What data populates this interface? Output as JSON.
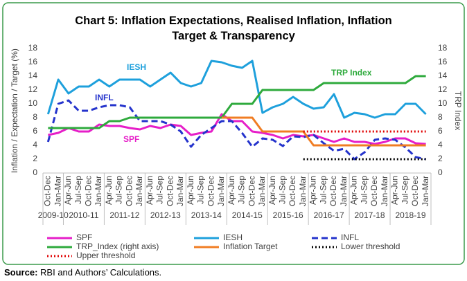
{
  "chart_data": {
    "type": "line",
    "title": "Chart 5: Inflation Expectations, Realised Inflation, Inflation Target & Transparency",
    "y_label": "Inflation / Expectation / Target (%)",
    "y2_label": "TRP Index",
    "categories": [
      "Oct-Dec",
      "Jan-Mar",
      "Apr-Jun",
      "Jul-Sep",
      "Oct-Dec",
      "Jan-Mar",
      "Apr-Jun",
      "Jul-Sep",
      "Oct-Dec",
      "Jan-Mar",
      "Apr-Jun",
      "Jul-Sep",
      "Oct-Dec",
      "Jan-Mar",
      "Apr-Jun",
      "Jul-Sep",
      "Oct-Dec",
      "Jan-Mar",
      "Apr-Jun",
      "Jul-Sep",
      "Oct-Dec",
      "Jan-Mar",
      "Apr-Jun",
      "Jul-Sep",
      "Oct-Dec",
      "Jan-Mar",
      "Apr-Jun",
      "Jul-Sep",
      "Oct-Dec",
      "Jan-Mar",
      "Apr-Jun",
      "Jul-Sep",
      "Oct-Dec",
      "Jan-Mar",
      "Apr-Jun",
      "Jul-Sep",
      "Oct-Dec",
      "Jan-Mar"
    ],
    "category_groups": [
      "2009-10",
      "2009-10",
      "2010-11",
      "2010-11",
      "2010-11",
      "2010-11",
      "2011-12",
      "2011-12",
      "2011-12",
      "2011-12",
      "2012-13",
      "2012-13",
      "2012-13",
      "2012-13",
      "2013-14",
      "2013-14",
      "2013-14",
      "2013-14",
      "2014-15",
      "2014-15",
      "2014-15",
      "2014-15",
      "2015-16",
      "2015-16",
      "2015-16",
      "2015-16",
      "2016-17",
      "2016-17",
      "2016-17",
      "2016-17",
      "2017-18",
      "2017-18",
      "2017-18",
      "2017-18",
      "2018-19",
      "2018-19",
      "2018-19",
      "2018-19"
    ],
    "ylim": [
      0,
      18
    ],
    "yticks": [
      0,
      2,
      4,
      6,
      8,
      10,
      12,
      14,
      16,
      18
    ],
    "y2lim": [
      0,
      18
    ],
    "y2ticks": [
      0,
      2,
      4,
      6,
      8,
      10,
      12,
      14,
      16,
      18
    ],
    "grid": false,
    "series": [
      {
        "name": "SPF",
        "color": "#e61ec8",
        "style": "solid",
        "values": [
          5.5,
          5.8,
          6.5,
          6,
          6,
          7,
          6.8,
          6.8,
          6.5,
          6.3,
          6.8,
          6.5,
          7,
          6.8,
          5.5,
          5.8,
          6,
          8.5,
          7.5,
          7.5,
          6,
          5.8,
          5.5,
          5,
          5.5,
          5.3,
          5.5,
          5,
          4.5,
          5,
          4.5,
          4.5,
          4.2,
          4.5,
          5,
          5,
          4.3,
          4.2
        ]
      },
      {
        "name": "IESH",
        "color": "#1ea0dc",
        "style": "solid",
        "values": [
          8.5,
          13.5,
          11.5,
          12.5,
          12.5,
          13.5,
          12.5,
          13.5,
          13.5,
          13.5,
          12.5,
          13.5,
          14.5,
          13,
          12.5,
          13,
          16.2,
          16,
          15.5,
          15.2,
          16.2,
          8.7,
          9.5,
          10,
          11,
          10,
          9.3,
          9.5,
          11.4,
          8,
          8.7,
          8.5,
          8,
          8.5,
          8.5,
          10,
          10,
          8.5
        ]
      },
      {
        "name": "INFL",
        "color": "#2433cc",
        "style": "dashed",
        "values": [
          4.5,
          10,
          10.5,
          9,
          9,
          9.5,
          9.8,
          9.8,
          9.5,
          7.5,
          7.5,
          7.5,
          7,
          6,
          3.8,
          5.5,
          6.5,
          7.5,
          7.5,
          5.8,
          3.8,
          5,
          4.8,
          3.9,
          5.3,
          5.2,
          5.5,
          4.3,
          3.2,
          3.5,
          2,
          3,
          4.8,
          5,
          4.8,
          3.7,
          2.3,
          2
        ]
      },
      {
        "name": "TRP_Index (right axis)",
        "color": "#2eaa3c",
        "style": "solid",
        "axis": "y2",
        "values": [
          6.5,
          6.5,
          6.5,
          6.5,
          6.5,
          6.5,
          7.5,
          7.5,
          8,
          8,
          8,
          8,
          8,
          8,
          8,
          8,
          8,
          8,
          10,
          10,
          10,
          12,
          12,
          12,
          12,
          12,
          12,
          13,
          13,
          13,
          13,
          13,
          13,
          13,
          13,
          13,
          14,
          14
        ]
      },
      {
        "name": "Inflation Target",
        "color": "#f07d23",
        "style": "solid",
        "values": [
          null,
          null,
          null,
          null,
          null,
          null,
          null,
          null,
          null,
          null,
          null,
          null,
          null,
          null,
          null,
          null,
          null,
          8,
          8,
          8,
          8,
          6,
          6,
          6,
          6,
          6,
          4,
          4,
          4,
          4,
          4,
          4,
          4,
          4,
          4,
          4,
          4,
          4
        ]
      },
      {
        "name": "Lower threshold",
        "color": "#000000",
        "style": "dotted",
        "values": [
          null,
          null,
          null,
          null,
          null,
          null,
          null,
          null,
          null,
          null,
          null,
          null,
          null,
          null,
          null,
          null,
          null,
          null,
          null,
          null,
          null,
          null,
          null,
          null,
          null,
          2,
          2,
          2,
          2,
          2,
          2,
          2,
          2,
          2,
          2,
          2,
          2,
          2
        ]
      },
      {
        "name": "Upper threshold",
        "color": "#e00000",
        "style": "dotted",
        "values": [
          null,
          null,
          null,
          null,
          null,
          null,
          null,
          null,
          null,
          null,
          null,
          null,
          null,
          null,
          null,
          null,
          null,
          null,
          null,
          null,
          null,
          null,
          null,
          null,
          null,
          6,
          6,
          6,
          6,
          6,
          6,
          6,
          6,
          6,
          6,
          6,
          6,
          6
        ]
      }
    ],
    "annotations": [
      {
        "text": "IESH",
        "color": "#1ea0dc"
      },
      {
        "text": "INFL",
        "color": "#2433cc"
      },
      {
        "text": "SPF",
        "color": "#e61ec8"
      },
      {
        "text": "TRP Index",
        "color": "#2eaa3c"
      }
    ]
  },
  "source": {
    "label": "Source:",
    "text": "RBI and Authors’ Calculations."
  }
}
